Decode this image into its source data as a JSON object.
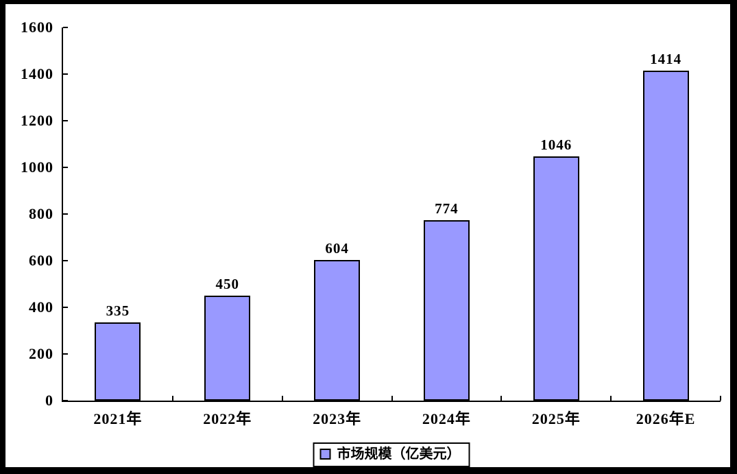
{
  "frame": {
    "outer_border_color": "#000000",
    "panel_background": "#ffffff"
  },
  "chart_data": {
    "type": "bar",
    "categories": [
      "2021年",
      "2022年",
      "2023年",
      "2024年",
      "2025年",
      "2026年E"
    ],
    "values": [
      335,
      450,
      604,
      774,
      1046,
      1414
    ],
    "series": [
      {
        "name": "市场规模（亿美元）",
        "values": [
          335,
          450,
          604,
          774,
          1046,
          1414
        ]
      }
    ],
    "title": "",
    "xlabel": "",
    "ylabel": "",
    "ylim": [
      0,
      1600
    ],
    "yticks": [
      0,
      200,
      400,
      600,
      800,
      1000,
      1200,
      1400,
      1600
    ],
    "grid": false,
    "legend_position": "bottom",
    "legend_label": "市场规模（亿美元）",
    "bar_color": "#9999FF",
    "bar_border_color": "#000000",
    "axis_color": "#000000",
    "text_color": "#000000"
  }
}
